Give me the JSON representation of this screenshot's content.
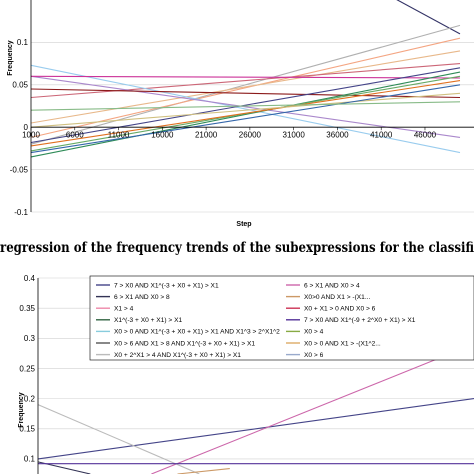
{
  "caption": "regression of the frequency trends of the subexpressions for the classifi",
  "chart_data": [
    {
      "type": "line",
      "title": "",
      "xlabel": "Step",
      "ylabel": "Frequency",
      "ylim": [
        -0.1,
        0.15
      ],
      "yticks": [
        -0.1,
        -0.05,
        0,
        0.05,
        0.1
      ],
      "ytick_labels": [
        "-0.1",
        "-0.05",
        "0",
        "0.05",
        "0.1"
      ],
      "xticks": [
        1000,
        6000,
        11000,
        16000,
        21000,
        26000,
        31000,
        36000,
        41000,
        46000
      ],
      "xtick_labels": [
        "1000",
        "6000",
        "11000",
        "16000",
        "21000",
        "26000",
        "31000",
        "36000",
        "41000",
        "46000"
      ],
      "xlim": [
        1000,
        50000
      ],
      "grid": "horizontal",
      "series": [
        {
          "color": "#333366",
          "x": [
            42500,
            50000
          ],
          "y": [
            0.152,
            0.11
          ]
        },
        {
          "color": "#b0b0b0",
          "x": [
            1000,
            50000
          ],
          "y": [
            -0.02,
            0.12
          ]
        },
        {
          "color": "#f4a582",
          "x": [
            1000,
            50000
          ],
          "y": [
            -0.012,
            0.105
          ]
        },
        {
          "color": "#e8b88a",
          "x": [
            1000,
            50000
          ],
          "y": [
            0.005,
            0.09
          ]
        },
        {
          "color": "#cc6677",
          "x": [
            1000,
            50000
          ],
          "y": [
            0.035,
            0.075
          ]
        },
        {
          "color": "#99ccee",
          "x": [
            1000,
            50000
          ],
          "y": [
            0.073,
            -0.03
          ]
        },
        {
          "color": "#aa88cc",
          "x": [
            1000,
            50000
          ],
          "y": [
            0.06,
            -0.012
          ]
        },
        {
          "color": "#cc3399",
          "x": [
            1000,
            50000
          ],
          "y": [
            0.06,
            0.058
          ]
        },
        {
          "color": "#8b1a1a",
          "x": [
            1000,
            50000
          ],
          "y": [
            0.045,
            0.035
          ]
        },
        {
          "color": "#444488",
          "x": [
            1000,
            50000
          ],
          "y": [
            -0.018,
            0.07
          ]
        },
        {
          "color": "#2e8b57",
          "x": [
            1000,
            50000
          ],
          "y": [
            -0.035,
            0.065
          ]
        },
        {
          "color": "#66aa66",
          "x": [
            1000,
            50000
          ],
          "y": [
            -0.028,
            0.06
          ]
        },
        {
          "color": "#e07020",
          "x": [
            1000,
            50000
          ],
          "y": [
            -0.022,
            0.055
          ]
        },
        {
          "color": "#d0c080",
          "x": [
            1000,
            50000
          ],
          "y": [
            0.0,
            0.04
          ]
        },
        {
          "color": "#3366aa",
          "x": [
            1000,
            50000
          ],
          "y": [
            -0.03,
            0.05
          ]
        },
        {
          "color": "#88bb88",
          "x": [
            1000,
            50000
          ],
          "y": [
            0.02,
            0.03
          ]
        }
      ]
    },
    {
      "type": "line",
      "title": "",
      "xlabel": "",
      "ylabel": "Frequency",
      "ylim": [
        0.075,
        0.4
      ],
      "yticks": [
        0.1,
        0.15,
        0.2,
        0.25,
        0.3,
        0.35,
        0.4
      ],
      "ytick_labels": [
        "0.1",
        "0.15",
        "0.2",
        "0.25",
        "0.3",
        "0.35",
        "0.4"
      ],
      "xlim": [
        0,
        100
      ],
      "grid": "horizontal",
      "legend": {
        "position": "top",
        "entries": [
          {
            "label": "7 > X0 AND X1^(-3 + X0 + X1) > X1",
            "color": "#444488"
          },
          {
            "label": "6 > X1 AND X0 > 4",
            "color": "#cc66aa"
          },
          {
            "label": "6 > X1 AND X0 > 8",
            "color": "#333355"
          },
          {
            "label": "X0>0 AND X1 > -(X1...",
            "color": "#cc9966"
          },
          {
            "label": "X1 > 4",
            "color": "#ee88aa"
          },
          {
            "label": "X0 + X1 > 0 AND X0 > 6",
            "color": "#cc3355"
          },
          {
            "label": "X1^(-3 + X0 + X1) > X1",
            "color": "#336644"
          },
          {
            "label": "7 > X0 AND X1^(-9 + 2^X0 + X1) > X1",
            "color": "#553399"
          },
          {
            "label": "X0 > 0 AND X1^(-3 + X0 + X1) > X1 AND X1^3 > 2^X1^2",
            "color": "#88ccdd"
          },
          {
            "label": "X0 > 4",
            "color": "#88aa44"
          },
          {
            "label": "X0 > 6 AND X1 > 8 AND X1^(-3 + X0 + X1) > X1",
            "color": "#555555"
          },
          {
            "label": "X0 > 0 AND X1 > -(X1^2...",
            "color": "#ddaa66"
          },
          {
            "label": "X0 + 2^X1 > 4 AND X1^(-3 + X0 + X1) > X1",
            "color": "#bbbbbb"
          },
          {
            "label": "X0 > 6",
            "color": "#99aacc"
          }
        ]
      },
      "series": [
        {
          "color": "#444488",
          "x": [
            0,
            100
          ],
          "y": [
            0.1,
            0.2
          ]
        },
        {
          "color": "#cc66aa",
          "x": [
            26,
            93
          ],
          "y": [
            0.075,
            0.27
          ]
        },
        {
          "color": "#bbbbbb",
          "x": [
            0,
            37
          ],
          "y": [
            0.19,
            0.075
          ]
        },
        {
          "color": "#333355",
          "x": [
            0,
            12
          ],
          "y": [
            0.095,
            0.075
          ]
        },
        {
          "color": "#553399",
          "x": [
            0,
            100
          ],
          "y": [
            0.092,
            0.092
          ]
        },
        {
          "color": "#cc9966",
          "x": [
            32,
            44
          ],
          "y": [
            0.075,
            0.084
          ]
        }
      ]
    }
  ]
}
